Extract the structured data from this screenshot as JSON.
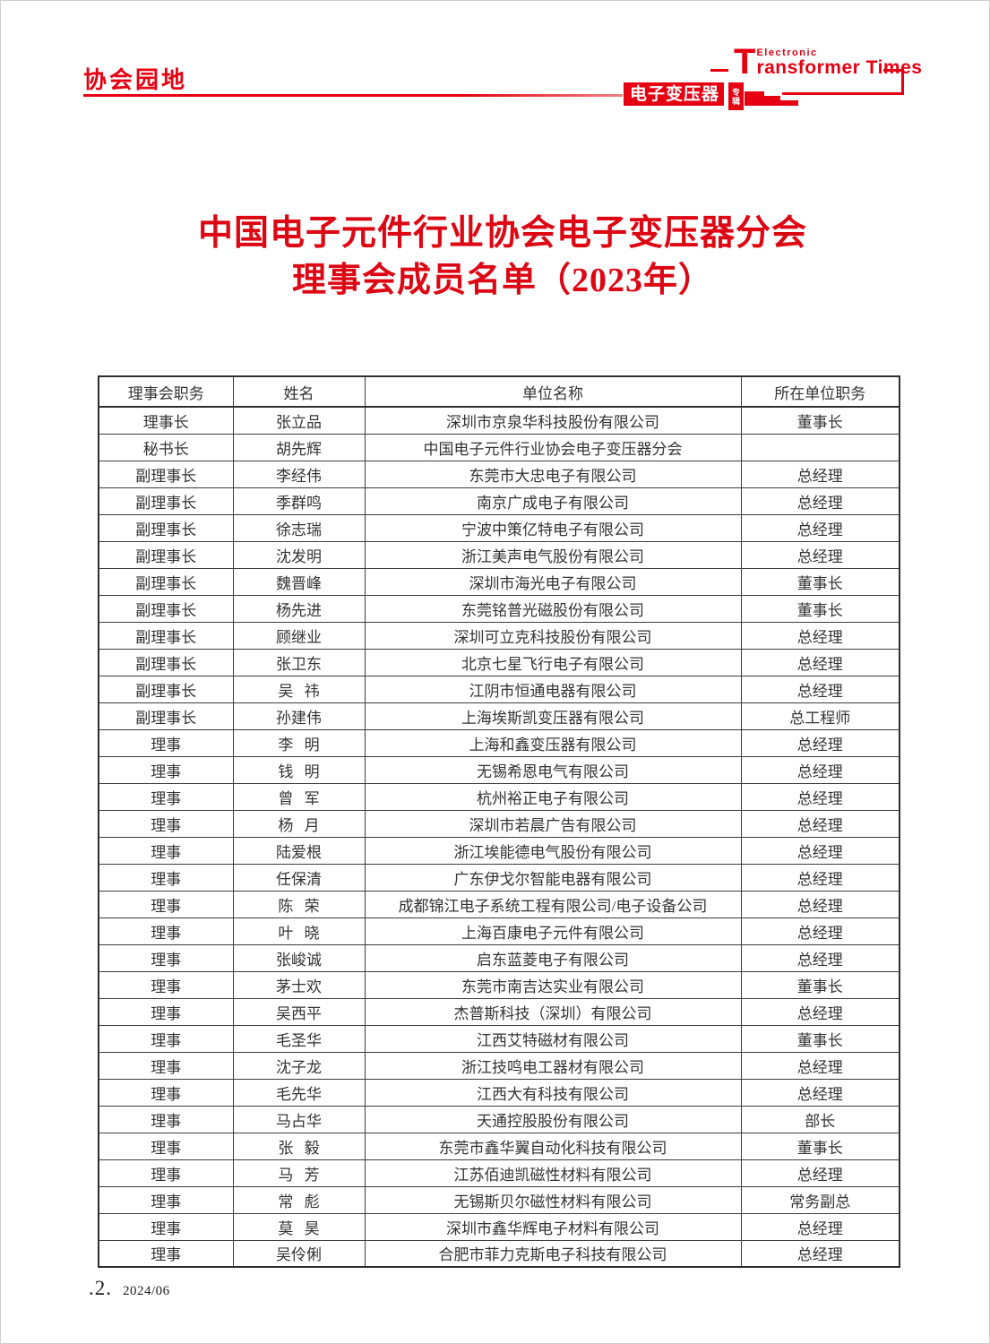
{
  "colors": {
    "accent_red": "#e60012",
    "title_red": "#dd0714",
    "table_border": "#3c3c3c",
    "text": "#333333"
  },
  "section_label": "协会园地",
  "masthead": {
    "t_letter": "T",
    "electronic": "Electronic",
    "times": "ransformer Times",
    "logo_main": "电子变压器",
    "logo_sub_top": "专",
    "logo_sub_bottom": "辑"
  },
  "title": {
    "line1": "中国电子元件行业协会电子变压器分会",
    "line2": "理事会成员名单（2023年）"
  },
  "table": {
    "headers": [
      "理事会职务",
      "姓名",
      "单位名称",
      "所在单位职务"
    ],
    "rows": [
      [
        "理事长",
        "张立品",
        "深圳市京泉华科技股份有限公司",
        "董事长"
      ],
      [
        "秘书长",
        "胡先辉",
        "中国电子元件行业协会电子变压器分会",
        ""
      ],
      [
        "副理事长",
        "李经伟",
        "东莞市大忠电子有限公司",
        "总经理"
      ],
      [
        "副理事长",
        "季群鸣",
        "南京广成电子有限公司",
        "总经理"
      ],
      [
        "副理事长",
        "徐志瑞",
        "宁波中策亿特电子有限公司",
        "总经理"
      ],
      [
        "副理事长",
        "沈发明",
        "浙江美声电气股份有限公司",
        "总经理"
      ],
      [
        "副理事长",
        "魏晋峰",
        "深圳市海光电子有限公司",
        "董事长"
      ],
      [
        "副理事长",
        "杨先进",
        "东莞铭普光磁股份有限公司",
        "董事长"
      ],
      [
        "副理事长",
        "顾继业",
        "深圳可立克科技股份有限公司",
        "总经理"
      ],
      [
        "副理事长",
        "张卫东",
        "北京七星飞行电子有限公司",
        "总经理"
      ],
      [
        "副理事长",
        "吴 祎",
        "江阴市恒通电器有限公司",
        "总经理"
      ],
      [
        "副理事长",
        "孙建伟",
        "上海埃斯凯变压器有限公司",
        "总工程师"
      ],
      [
        "理事",
        "李 明",
        "上海和鑫变压器有限公司",
        "总经理"
      ],
      [
        "理事",
        "钱 明",
        "无锡希恩电气有限公司",
        "总经理"
      ],
      [
        "理事",
        "曾 军",
        "杭州裕正电子有限公司",
        "总经理"
      ],
      [
        "理事",
        "杨 月",
        "深圳市若晨广告有限公司",
        "总经理"
      ],
      [
        "理事",
        "陆爱根",
        "浙江埃能德电气股份有限公司",
        "总经理"
      ],
      [
        "理事",
        "任保清",
        "广东伊戈尔智能电器有限公司",
        "总经理"
      ],
      [
        "理事",
        "陈 荣",
        "成都锦江电子系统工程有限公司/电子设备公司",
        "总经理"
      ],
      [
        "理事",
        "叶 晓",
        "上海百康电子元件有限公司",
        "总经理"
      ],
      [
        "理事",
        "张峻诚",
        "启东蓝菱电子有限公司",
        "总经理"
      ],
      [
        "理事",
        "茅士欢",
        "东莞市南吉达实业有限公司",
        "董事长"
      ],
      [
        "理事",
        "吴西平",
        "杰普斯科技（深圳）有限公司",
        "总经理"
      ],
      [
        "理事",
        "毛圣华",
        "江西艾特磁材有限公司",
        "董事长"
      ],
      [
        "理事",
        "沈子龙",
        "浙江技鸣电工器材有限公司",
        "总经理"
      ],
      [
        "理事",
        "毛先华",
        "江西大有科技有限公司",
        "总经理"
      ],
      [
        "理事",
        "马占华",
        "天通控股股份有限公司",
        "部长"
      ],
      [
        "理事",
        "张 毅",
        "东莞市鑫华翼自动化科技有限公司",
        "董事长"
      ],
      [
        "理事",
        "马 芳",
        "江苏佰迪凯磁性材料有限公司",
        "总经理"
      ],
      [
        "理事",
        "常 彪",
        "无锡斯贝尔磁性材料有限公司",
        "常务副总"
      ],
      [
        "理事",
        "莫 昊",
        "深圳市鑫华辉电子材料有限公司",
        "总经理"
      ],
      [
        "理事",
        "吴伶俐",
        "合肥市菲力克斯电子科技有限公司",
        "总经理"
      ]
    ],
    "column_names": [
      "role",
      "name",
      "org",
      "org-role"
    ]
  },
  "footer": {
    "page_number": ".2.",
    "issue": "2024/06"
  }
}
